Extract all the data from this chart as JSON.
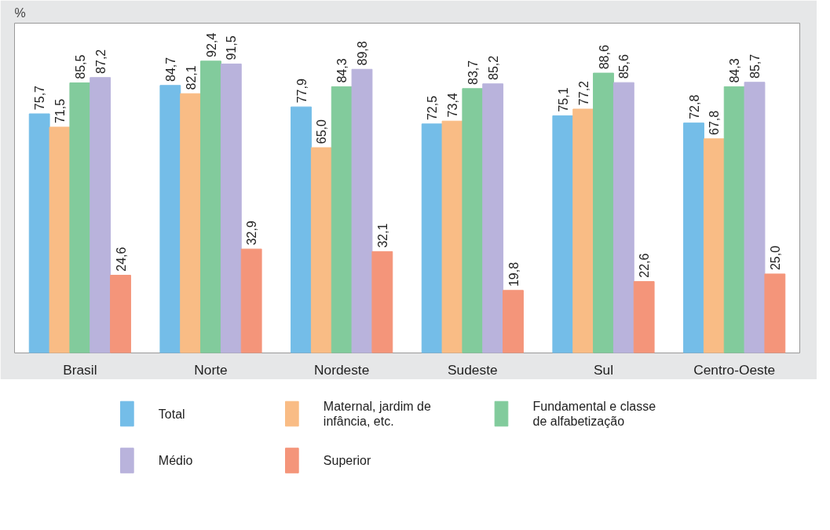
{
  "chart_data": {
    "type": "bar",
    "ylabel": "%",
    "categories": [
      "Brasil",
      "Norte",
      "Nordeste",
      "Sudeste",
      "Sul",
      "Centro-Oeste"
    ],
    "series": [
      {
        "name": "Total",
        "color": "#74bde8",
        "values": [
          75.7,
          84.7,
          77.9,
          72.5,
          75.1,
          72.8
        ],
        "value_labels": [
          "75,7",
          "84,7",
          "77,9",
          "72,5",
          "75,1",
          "72,8"
        ]
      },
      {
        "name": "Maternal, jardim de infância, etc.",
        "color": "#f9bc85",
        "values": [
          71.5,
          82.1,
          65.0,
          73.4,
          77.2,
          67.8
        ],
        "value_labels": [
          "71,5",
          "82,1",
          "65,0",
          "73,4",
          "77,2",
          "67,8"
        ]
      },
      {
        "name": "Fundamental e classe de alfabetização",
        "color": "#82cb9c",
        "values": [
          85.5,
          92.4,
          84.3,
          83.7,
          88.6,
          84.3
        ],
        "value_labels": [
          "85,5",
          "92,4",
          "84,3",
          "83,7",
          "88,6",
          "84,3"
        ]
      },
      {
        "name": "Médio",
        "color": "#b9b3dc",
        "values": [
          87.2,
          91.5,
          89.8,
          85.2,
          85.6,
          85.7
        ],
        "value_labels": [
          "87,2",
          "91,5",
          "89,8",
          "85,2",
          "85,6",
          "85,7"
        ]
      },
      {
        "name": "Superior",
        "color": "#f4957a",
        "values": [
          24.6,
          32.9,
          32.1,
          19.8,
          22.6,
          25.0
        ],
        "value_labels": [
          "24,6",
          "32,9",
          "32,1",
          "19,8",
          "22,6",
          "25,0"
        ]
      }
    ],
    "tick_labels": "x",
    "legend": "bottom"
  }
}
